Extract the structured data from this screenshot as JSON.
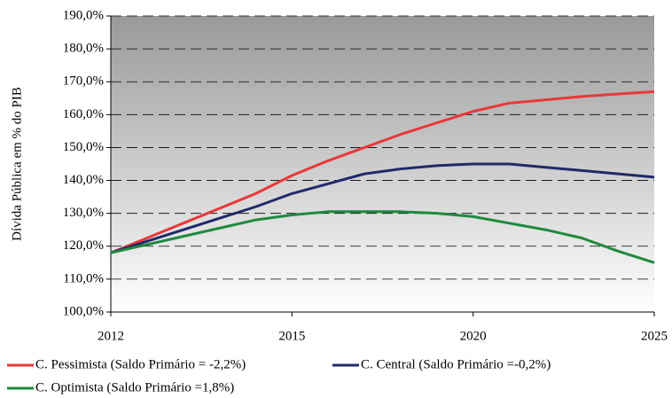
{
  "chart_data": {
    "type": "line",
    "y_label": "Dívida Pública em % do PIB",
    "categories": [
      "2012",
      null,
      null,
      null,
      null,
      "2015",
      null,
      null,
      null,
      null,
      "2020",
      null,
      null,
      null,
      null,
      "2025"
    ],
    "series": [
      {
        "name": "C. Pessimista (Saldo Primário = -2,2%)",
        "color": "#e8383a",
        "values": [
          118,
          122.5,
          127,
          131.5,
          136,
          141.5,
          146,
          150,
          154,
          157.5,
          161,
          163.5,
          164.5,
          165.5,
          166.3,
          167
        ]
      },
      {
        "name": "C. Central (Saldo Primário =-0,2%)",
        "color": "#1f2a6b",
        "values": [
          118,
          121.5,
          125,
          128.5,
          132,
          136,
          139,
          142,
          143.5,
          144.5,
          145,
          145,
          144,
          143,
          142,
          141
        ]
      },
      {
        "name": "C. Optimista (Saldo Primário =1,8%)",
        "color": "#1e8a3e",
        "values": [
          118,
          120.5,
          123,
          125.5,
          128,
          129.5,
          130.5,
          130.5,
          130.5,
          130,
          129,
          127,
          125,
          122.5,
          118.5,
          115
        ]
      }
    ],
    "ylim": [
      100,
      190
    ],
    "yticks": [
      {
        "value": 100,
        "label": "100,0%"
      },
      {
        "value": 110,
        "label": "110,0%"
      },
      {
        "value": 120,
        "label": "120,0%"
      },
      {
        "value": 130,
        "label": "130,0%"
      },
      {
        "value": 140,
        "label": "140,0%"
      },
      {
        "value": 150,
        "label": "150,0%"
      },
      {
        "value": 160,
        "label": "160,0%"
      },
      {
        "value": 170,
        "label": "170,0%"
      },
      {
        "value": 180,
        "label": "180,0%"
      },
      {
        "value": 190,
        "label": "190,0%"
      }
    ],
    "grid": true
  }
}
